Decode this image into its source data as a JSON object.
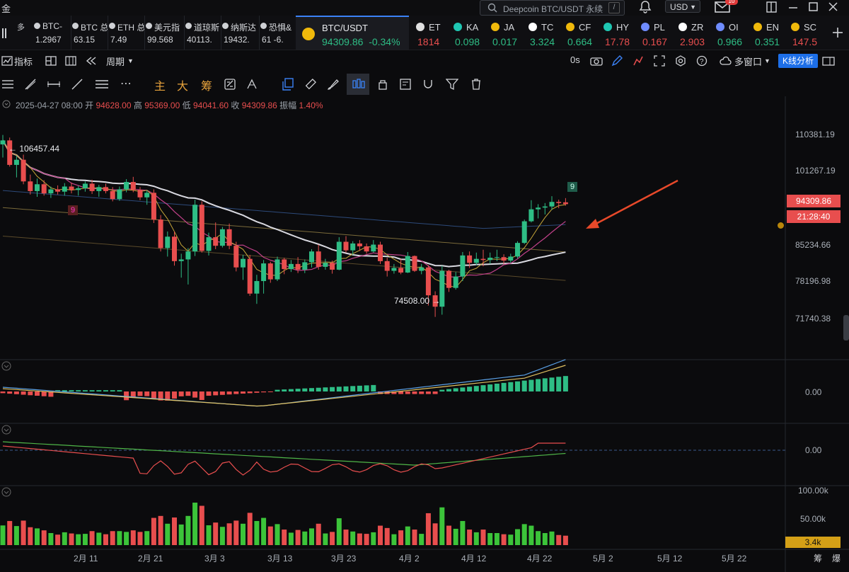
{
  "app": {
    "title_char": "金"
  },
  "search": {
    "placeholder": "Deepcoin BTC/USDT 永续",
    "shortcut": "/"
  },
  "currency": {
    "selected": "USD"
  },
  "mail": {
    "badge": "10"
  },
  "tickers_left": [
    {
      "name": "BTC-",
      "value": "1.2967"
    },
    {
      "name": "BTC 总",
      "value": "63.15"
    },
    {
      "name": "ETH 总",
      "value": "7.49"
    },
    {
      "name": "美元指",
      "value": "99.568"
    },
    {
      "name": "道琼斯",
      "value": "40113."
    },
    {
      "name": "纳斯达",
      "value": "19432."
    },
    {
      "name": "恐惧&",
      "value": "61 -6."
    }
  ],
  "side_label": "多",
  "active_ticker": {
    "name": "BTC/USDT",
    "price": "94309.86",
    "change": "-0.34%"
  },
  "tickers_right": [
    {
      "name": "ET",
      "value": "1814",
      "dir": "down",
      "icon_color": "#e0e0e0"
    },
    {
      "name": "KA",
      "value": "0.098",
      "dir": "up",
      "icon_color": "#1fc7b3"
    },
    {
      "name": "JA",
      "value": "0.017",
      "dir": "up",
      "icon_color": "#f0b90b"
    },
    {
      "name": "TC",
      "value": "3.324",
      "dir": "up",
      "icon_color": "#ffffff"
    },
    {
      "name": "CF",
      "value": "0.664",
      "dir": "up",
      "icon_color": "#f0b90b"
    },
    {
      "name": "HY",
      "value": "17.78",
      "dir": "down",
      "icon_color": "#1fc7b3"
    },
    {
      "name": "PL",
      "value": "0.167",
      "dir": "down",
      "icon_color": "#6f8cff"
    },
    {
      "name": "ZR",
      "value": "2.903",
      "dir": "down",
      "icon_color": "#ffffff"
    },
    {
      "name": "OI",
      "value": "0.966",
      "dir": "up",
      "icon_color": "#6f8cff"
    },
    {
      "name": "EN",
      "value": "0.351",
      "dir": "up",
      "icon_color": "#f0b90b"
    },
    {
      "name": "SC",
      "value": "147.5",
      "dir": "down",
      "icon_color": "#f0b90b"
    }
  ],
  "toolbar1": {
    "indicators": "指标",
    "period": "周期",
    "interval": "0s",
    "multi_window": "多窗口",
    "kline_analysis": "K线分析"
  },
  "toolbar2": {
    "main": "主",
    "big": "大",
    "chips": "筹"
  },
  "ohlc": {
    "date": "2025-04-27 08:00",
    "open_label": "开",
    "open": "94628.00",
    "high_label": "高",
    "high": "95369.00",
    "low_label": "低",
    "low": "94041.60",
    "close_label": "收",
    "close": "94309.86",
    "amp_label": "振幅",
    "amp": "1.40%"
  },
  "price_axis": [
    "110381.19",
    "101267.19",
    "85234.66",
    "78196.98",
    "71740.38"
  ],
  "current_price_tag": "94309.86",
  "countdown_tag": "21:28:40",
  "annotations": {
    "high": "106457.44",
    "low": "74508.00",
    "count_top": "9",
    "count_left": "9"
  },
  "macd_axis": "0.00",
  "panel3_axis": "0.00",
  "volume_axis": [
    "100.00k",
    "50.00k"
  ],
  "volume_tag": "3.4k",
  "x_labels": [
    "2月 11",
    "2月 21",
    "3月 3",
    "3月 13",
    "3月 23",
    "4月 2",
    "4月 12",
    "4月 22",
    "5月 2",
    "5月 12",
    "5月 22"
  ],
  "x_right": [
    "筹",
    "爆"
  ],
  "colors": {
    "up": "#e84e4e",
    "down": "#2ebd85",
    "accent": "#1d6fe8",
    "vol_green": "#3cc43a",
    "vol_red": "#e84e4e"
  },
  "chart_data": {
    "type": "candlestick",
    "title": "BTC/USDT",
    "interval": "1D",
    "ylim": [
      68000,
      113000
    ],
    "candles": [
      [
        1,
        104800,
        106457,
        102500,
        105500
      ],
      [
        2,
        105500,
        106000,
        100900,
        101200
      ],
      [
        3,
        101200,
        102800,
        99000,
        102100
      ],
      [
        4,
        102100,
        103000,
        97800,
        98300
      ],
      [
        5,
        98300,
        99500,
        96000,
        96600
      ],
      [
        6,
        96600,
        98800,
        95600,
        97800
      ],
      [
        7,
        97800,
        98500,
        95800,
        96200
      ],
      [
        8,
        96200,
        97400,
        95400,
        96900
      ],
      [
        9,
        96900,
        97600,
        96000,
        96500
      ],
      [
        10,
        96500,
        98000,
        95800,
        97400
      ],
      [
        11,
        97400,
        98100,
        96200,
        96800
      ],
      [
        12,
        96800,
        97500,
        95800,
        97100
      ],
      [
        13,
        97100,
        98300,
        96500,
        97900
      ],
      [
        14,
        97900,
        98600,
        96100,
        96600
      ],
      [
        15,
        96600,
        97700,
        95600,
        97300
      ],
      [
        16,
        97300,
        97900,
        96200,
        96600
      ],
      [
        17,
        96600,
        97300,
        94800,
        95200
      ],
      [
        18,
        95200,
        97400,
        94900,
        96900
      ],
      [
        19,
        96900,
        98700,
        96400,
        98200
      ],
      [
        20,
        98200,
        99100,
        96400,
        96800
      ],
      [
        21,
        96800,
        97300,
        95000,
        95500
      ],
      [
        22,
        95500,
        96700,
        94200,
        96300
      ],
      [
        23,
        96300,
        96900,
        91000,
        91600
      ],
      [
        24,
        91600,
        92400,
        86000,
        86600
      ],
      [
        25,
        86600,
        89500,
        85100,
        88600
      ],
      [
        26,
        88600,
        89500,
        83500,
        84300
      ],
      [
        27,
        84300,
        85600,
        81400,
        84600
      ],
      [
        28,
        84600,
        86600,
        80200,
        86000
      ],
      [
        29,
        86000,
        95100,
        85200,
        94200
      ],
      [
        30,
        94200,
        94800,
        85800,
        86100
      ],
      [
        31,
        86100,
        89300,
        85300,
        88500
      ],
      [
        32,
        88500,
        91100,
        86400,
        87000
      ],
      [
        33,
        87000,
        90300,
        86700,
        89900
      ],
      [
        34,
        89900,
        90900,
        86400,
        87000
      ],
      [
        35,
        87000,
        87700,
        82500,
        83200
      ],
      [
        36,
        83200,
        85400,
        81000,
        84700
      ],
      [
        37,
        84700,
        85400,
        78200,
        78600
      ],
      [
        38,
        78600,
        81900,
        76800,
        80800
      ],
      [
        39,
        80800,
        84500,
        78600,
        83900
      ],
      [
        40,
        83900,
        84200,
        80500,
        81100
      ],
      [
        41,
        81100,
        85100,
        80800,
        84600
      ],
      [
        42,
        84600,
        84900,
        82000,
        82900
      ],
      [
        43,
        82900,
        84500,
        82400,
        83800
      ],
      [
        44,
        83800,
        85000,
        82200,
        82800
      ],
      [
        45,
        82800,
        84600,
        82200,
        84100
      ],
      [
        46,
        84100,
        86400,
        83200,
        86000
      ],
      [
        47,
        86000,
        87200,
        82800,
        83300
      ],
      [
        48,
        83300,
        84700,
        82800,
        84000
      ],
      [
        49,
        84000,
        84400,
        82100,
        82800
      ],
      [
        50,
        82800,
        88500,
        82700,
        87700
      ],
      [
        51,
        87700,
        88700,
        85800,
        86200
      ],
      [
        52,
        86200,
        87800,
        85400,
        87400
      ],
      [
        53,
        87400,
        88000,
        86100,
        86900
      ],
      [
        54,
        86900,
        87400,
        85600,
        86000
      ],
      [
        55,
        86000,
        88000,
        85800,
        87200
      ],
      [
        56,
        87200,
        87700,
        83800,
        84300
      ],
      [
        57,
        84300,
        84900,
        81600,
        82600
      ],
      [
        58,
        82600,
        83800,
        82100,
        83100
      ],
      [
        59,
        83100,
        84700,
        82000,
        82300
      ],
      [
        60,
        82300,
        85900,
        82200,
        85200
      ],
      [
        61,
        85200,
        85300,
        82400,
        82600
      ],
      [
        62,
        82600,
        83800,
        82000,
        83200
      ],
      [
        63,
        83200,
        83600,
        76500,
        78300
      ],
      [
        64,
        78300,
        79000,
        74508,
        76300
      ],
      [
        65,
        76300,
        83500,
        74900,
        82600
      ],
      [
        66,
        82600,
        82800,
        78900,
        79600
      ],
      [
        67,
        79600,
        82400,
        79300,
        81600
      ],
      [
        68,
        81600,
        85900,
        80800,
        85300
      ],
      [
        69,
        85300,
        86000,
        83100,
        84000
      ],
      [
        70,
        84000,
        85800,
        83600,
        84700
      ],
      [
        71,
        84700,
        86300,
        83400,
        84500
      ],
      [
        72,
        84500,
        85800,
        83800,
        84900
      ],
      [
        73,
        84900,
        86300,
        84300,
        85000
      ],
      [
        74,
        85000,
        85500,
        83800,
        84400
      ],
      [
        75,
        84400,
        85600,
        84000,
        85100
      ],
      [
        76,
        85100,
        87800,
        84800,
        87500
      ],
      [
        77,
        87500,
        91600,
        87300,
        91300
      ],
      [
        78,
        91300,
        95000,
        91100,
        93400
      ],
      [
        79,
        93400,
        94300,
        91800,
        93700
      ],
      [
        80,
        93700,
        94500,
        92500,
        93900
      ],
      [
        81,
        93900,
        95700,
        93300,
        94700
      ],
      [
        82,
        94700,
        95100,
        93600,
        94500
      ],
      [
        83,
        94628,
        95369,
        94041,
        94309
      ]
    ]
  }
}
